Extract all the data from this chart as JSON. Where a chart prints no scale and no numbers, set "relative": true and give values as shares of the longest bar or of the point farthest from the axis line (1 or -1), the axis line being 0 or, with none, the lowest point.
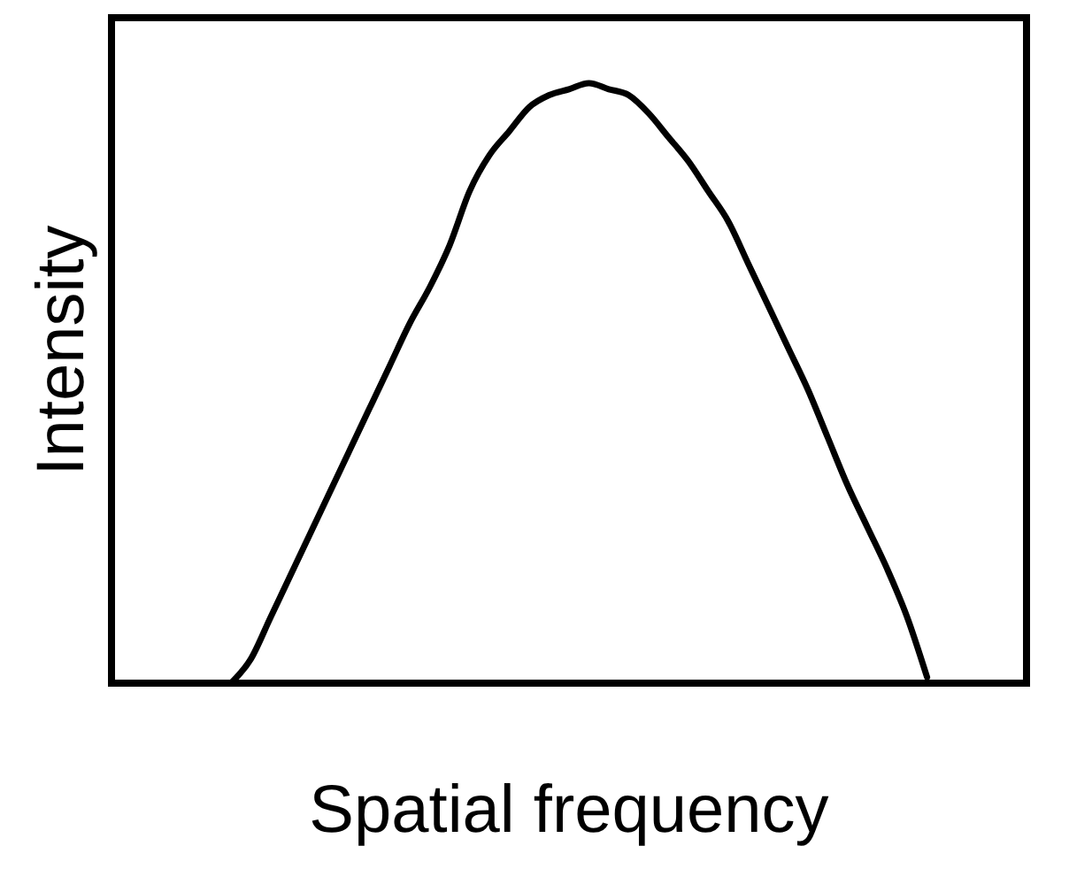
{
  "chart_data": {
    "type": "line",
    "xlabel": "Spatial frequency",
    "ylabel": "Intensity",
    "relative": true,
    "color": "#000000",
    "categories": [
      null,
      null,
      null,
      null,
      null,
      null,
      null,
      null,
      null,
      null,
      null,
      null,
      null,
      null,
      null,
      null,
      null,
      null,
      null,
      null,
      null,
      null,
      null,
      null,
      null,
      null,
      null,
      null,
      null,
      null,
      null,
      null,
      null,
      null,
      null,
      null,
      null,
      null,
      null,
      null,
      null,
      null,
      null,
      null,
      null,
      null,
      null
    ],
    "values": [
      null,
      null,
      null,
      null,
      null,
      null,
      0,
      0.04,
      0.11,
      0.18,
      0.25,
      0.32,
      0.39,
      0.46,
      0.53,
      0.6,
      0.66,
      0.73,
      0.82,
      0.88,
      0.92,
      0.96,
      0.98,
      0.99,
      1,
      0.99,
      0.98,
      0.95,
      0.91,
      0.87,
      0.82,
      0.77,
      0.7,
      0.63,
      0.56,
      0.49,
      0.41,
      0.33,
      0.26,
      0.19,
      0.11,
      0.01,
      null,
      null,
      null,
      null,
      null
    ]
  }
}
